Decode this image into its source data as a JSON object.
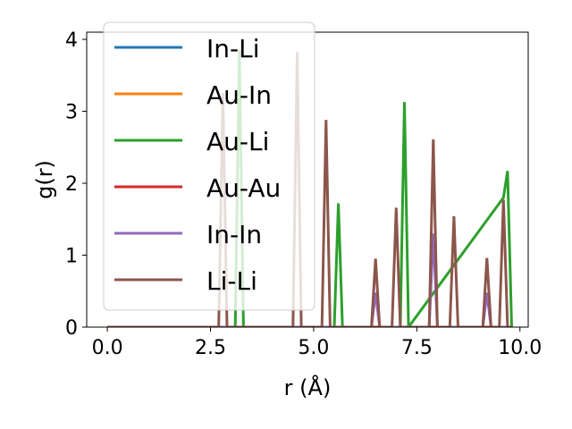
{
  "chart_data": {
    "type": "line",
    "xlabel": "r (Å)",
    "ylabel": "g(r)",
    "xlim": [
      -0.5,
      10.2
    ],
    "ylim": [
      0,
      4.1
    ],
    "xticks": [
      0.0,
      2.5,
      5.0,
      7.5,
      10.0
    ],
    "xtick_labels": [
      "0.0",
      "2.5",
      "5.0",
      "7.5",
      "10.0"
    ],
    "yticks": [
      0,
      1,
      2,
      3,
      4
    ],
    "ytick_labels": [
      "0",
      "1",
      "2",
      "3",
      "4"
    ],
    "grid": false,
    "legend_position": "upper-left",
    "series": [
      {
        "name": "In-Li",
        "color": "#1f77b4",
        "x": [
          0,
          9.8
        ],
        "y": [
          0,
          0
        ]
      },
      {
        "name": "Au-In",
        "color": "#ff7f0e",
        "x": [
          0,
          9.8
        ],
        "y": [
          0,
          0
        ]
      },
      {
        "name": "Au-Li",
        "color": "#2ca02c",
        "x": [
          0,
          3.1,
          3.2,
          3.3,
          5.5,
          5.6,
          5.7,
          7.1,
          7.2,
          7.3,
          9.6,
          9.7,
          9.8
        ],
        "y": [
          0,
          0,
          3.85,
          0,
          0,
          1.72,
          0,
          0,
          3.13,
          0,
          1.8,
          2.17,
          0
        ]
      },
      {
        "name": "Au-Au",
        "color": "#d62728",
        "x": [
          0,
          9.8
        ],
        "y": [
          0,
          0
        ]
      },
      {
        "name": "In-In",
        "color": "#9467bd",
        "x": [
          0,
          6.4,
          6.5,
          6.6,
          7.8,
          7.9,
          8.0,
          9.1,
          9.2,
          9.3,
          9.8
        ],
        "y": [
          0,
          0,
          0.48,
          0,
          0,
          1.3,
          0,
          0,
          0.48,
          0,
          0
        ]
      },
      {
        "name": "Li-Li",
        "color": "#8c564b",
        "x": [
          0,
          2.7,
          2.8,
          2.9,
          4.5,
          4.6,
          4.7,
          5.2,
          5.3,
          5.4,
          6.4,
          6.5,
          6.6,
          6.9,
          7.0,
          7.1,
          7.8,
          7.9,
          8.0,
          8.3,
          8.4,
          8.5,
          9.1,
          9.2,
          9.3,
          9.5,
          9.6,
          9.7,
          9.8
        ],
        "y": [
          0,
          0,
          3.25,
          0,
          0,
          3.82,
          0,
          0,
          2.88,
          0,
          0,
          0.95,
          0,
          0,
          1.66,
          0,
          0,
          2.61,
          0,
          0,
          1.54,
          0,
          0,
          0.96,
          0,
          0,
          1.77,
          0,
          0
        ]
      }
    ]
  }
}
